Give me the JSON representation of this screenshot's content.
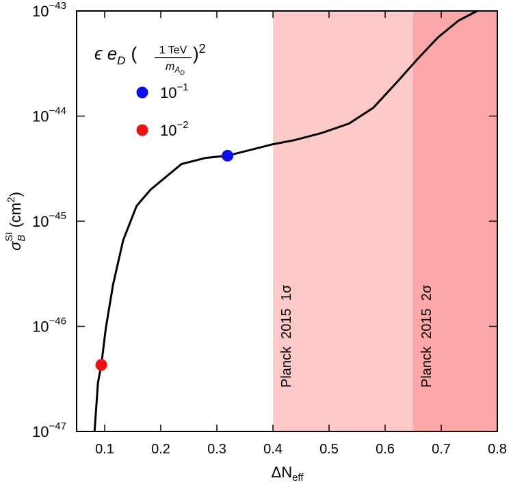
{
  "chart_data": {
    "type": "line",
    "x_label": {
      "text": "ΔN",
      "sub": "eff"
    },
    "y_label": {
      "symbol": "σ",
      "sub": "B",
      "sup": "SI",
      "unit": "(cm",
      "unit_exp": "2",
      "close": ")"
    },
    "xlim": [
      0.05,
      0.8
    ],
    "xticks": [
      0.1,
      0.2,
      0.3,
      0.4,
      0.5,
      0.6,
      0.7,
      0.8
    ],
    "ylim": [
      1e-47,
      1e-43
    ],
    "log_y": true,
    "yticks": [
      {
        "value": 1e-47,
        "label": "10",
        "exponent": "−47"
      },
      {
        "value": 1e-46,
        "label": "10",
        "exponent": "−46"
      },
      {
        "value": 1e-45,
        "label": "10",
        "exponent": "−45"
      },
      {
        "value": 1e-44,
        "label": "10",
        "exponent": "−44"
      },
      {
        "value": 1e-43,
        "label": "10",
        "exponent": "−43"
      }
    ],
    "bands": [
      {
        "x": [
          0.4,
          0.65
        ],
        "color": "#fdc9c9",
        "label": "Planck  2015  1σ"
      },
      {
        "x": [
          0.65,
          0.8
        ],
        "color": "#fca8a8",
        "label": "Planck  2015  2σ"
      }
    ],
    "curve": {
      "color": "#000000",
      "x": [
        0.082,
        0.088,
        0.094,
        0.102,
        0.115,
        0.133,
        0.157,
        0.182,
        0.237,
        0.28,
        0.319,
        0.4,
        0.438,
        0.487,
        0.536,
        0.579,
        0.621,
        0.658,
        0.694,
        0.731,
        0.764
      ],
      "values": [
        1e-47,
        2.9e-47,
        4.3e-47,
        9.5e-47,
        2.5e-46,
        6.6e-46,
        1.4e-45,
        2e-45,
        3.5e-45,
        4e-45,
        4.2e-45,
        5.4e-45,
        5.9e-45,
        6.9e-45,
        8.5e-45,
        1.2e-44,
        2.1e-44,
        3.5e-44,
        5.6e-44,
        8.1e-44,
        1e-43
      ]
    },
    "legend": {
      "title": {
        "prefix": "ϵ e",
        "prefix_sub": "D",
        "open": "(",
        "numerator": "1 TeV",
        "denominator": "m",
        "denominator_sub": "A",
        "denominator_subsub": "D",
        "close": ")",
        "exponent": "2"
      }
    },
    "series": [
      {
        "name": "10",
        "name_exponent": "−1",
        "color": "#0a10f0",
        "x": [
          0.319
        ],
        "values": [
          4.2e-45
        ]
      },
      {
        "name": "10",
        "name_exponent": "−2",
        "color": "#f01010",
        "x": [
          0.094
        ],
        "values": [
          4.3e-47
        ]
      }
    ]
  }
}
